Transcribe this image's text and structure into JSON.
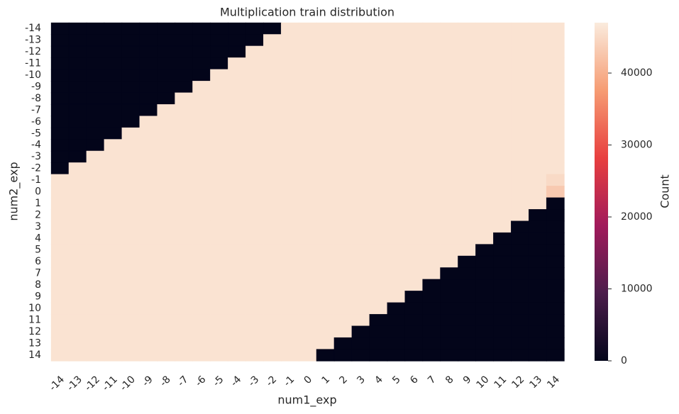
{
  "chart_data": {
    "type": "heatmap",
    "title": "Multiplication train distribution",
    "x_label": "num1_exp",
    "y_label": "num2_exp",
    "colorbar_label": "Count",
    "x_categories": [
      "-14",
      "-13",
      "-12",
      "-11",
      "-10",
      "-9",
      "-8",
      "-7",
      "-6",
      "-5",
      "-4",
      "-3",
      "-2",
      "-1",
      "0",
      "1",
      "2",
      "3",
      "4",
      "5",
      "6",
      "7",
      "8",
      "9",
      "10",
      "11",
      "12",
      "13",
      "14"
    ],
    "y_categories": [
      "-14",
      "-13",
      "-12",
      "-11",
      "-10",
      "-9",
      "-8",
      "-7",
      "-6",
      "-5",
      "-4",
      "-3",
      "-2",
      "-1",
      "0",
      "1",
      "2",
      "3",
      "4",
      "5",
      "6",
      "7",
      "8",
      "9",
      "10",
      "11",
      "12",
      "13",
      "14"
    ],
    "colormap": [
      "#03051a",
      "#4c1d4b",
      "#a11a5b",
      "#e83f3f",
      "#f69c73",
      "#faebdd"
    ],
    "clim": [
      0,
      47000
    ],
    "cticks": [
      0,
      10000,
      20000,
      30000,
      40000
    ],
    "z": [
      [
        0,
        0,
        0,
        0,
        0,
        0,
        0,
        0,
        0,
        0,
        0,
        0,
        0,
        46000,
        46000,
        46000,
        46000,
        46000,
        46000,
        46000,
        46000,
        46000,
        46000,
        46000,
        46000,
        46000,
        46000,
        46000,
        46000
      ],
      [
        0,
        0,
        0,
        0,
        0,
        0,
        0,
        0,
        0,
        0,
        0,
        0,
        46000,
        46000,
        46000,
        46000,
        46000,
        46000,
        46000,
        46000,
        46000,
        46000,
        46000,
        46000,
        46000,
        46000,
        46000,
        46000,
        46000
      ],
      [
        0,
        0,
        0,
        0,
        0,
        0,
        0,
        0,
        0,
        0,
        0,
        46000,
        46000,
        46000,
        46000,
        46000,
        46000,
        46000,
        46000,
        46000,
        46000,
        46000,
        46000,
        46000,
        46000,
        46000,
        46000,
        46000,
        46000
      ],
      [
        0,
        0,
        0,
        0,
        0,
        0,
        0,
        0,
        0,
        0,
        46000,
        46000,
        46000,
        46000,
        46000,
        46000,
        46000,
        46000,
        46000,
        46000,
        46000,
        46000,
        46000,
        46000,
        46000,
        46000,
        46000,
        46000,
        46000
      ],
      [
        0,
        0,
        0,
        0,
        0,
        0,
        0,
        0,
        0,
        46000,
        46000,
        46000,
        46000,
        46000,
        46000,
        46000,
        46000,
        46000,
        46000,
        46000,
        46000,
        46000,
        46000,
        46000,
        46000,
        46000,
        46000,
        46000,
        46000
      ],
      [
        0,
        0,
        0,
        0,
        0,
        0,
        0,
        0,
        46000,
        46000,
        46000,
        46000,
        46000,
        46000,
        46000,
        46000,
        46000,
        46000,
        46000,
        46000,
        46000,
        46000,
        46000,
        46000,
        46000,
        46000,
        46000,
        46000,
        46000
      ],
      [
        0,
        0,
        0,
        0,
        0,
        0,
        0,
        46000,
        46000,
        46000,
        46000,
        46000,
        46000,
        46000,
        46000,
        46000,
        46000,
        46000,
        46000,
        46000,
        46000,
        46000,
        46000,
        46000,
        46000,
        46000,
        46000,
        46000,
        46000
      ],
      [
        0,
        0,
        0,
        0,
        0,
        0,
        46000,
        46000,
        46000,
        46000,
        46000,
        46000,
        46000,
        46000,
        46000,
        46000,
        46000,
        46000,
        46000,
        46000,
        46000,
        46000,
        46000,
        46000,
        46000,
        46000,
        46000,
        46000,
        46000
      ],
      [
        0,
        0,
        0,
        0,
        0,
        46000,
        46000,
        46000,
        46000,
        46000,
        46000,
        46000,
        46000,
        46000,
        46000,
        46000,
        46000,
        46000,
        46000,
        46000,
        46000,
        46000,
        46000,
        46000,
        46000,
        46000,
        46000,
        46000,
        46000
      ],
      [
        0,
        0,
        0,
        0,
        46000,
        46000,
        46000,
        46000,
        46000,
        46000,
        46000,
        46000,
        46000,
        46000,
        46000,
        46000,
        46000,
        46000,
        46000,
        46000,
        46000,
        46000,
        46000,
        46000,
        46000,
        46000,
        46000,
        46000,
        46000
      ],
      [
        0,
        0,
        0,
        46000,
        46000,
        46000,
        46000,
        46000,
        46000,
        46000,
        46000,
        46000,
        46000,
        46000,
        46000,
        46000,
        46000,
        46000,
        46000,
        46000,
        46000,
        46000,
        46000,
        46000,
        46000,
        46000,
        46000,
        46000,
        46000
      ],
      [
        0,
        0,
        46000,
        46000,
        46000,
        46000,
        46000,
        46000,
        46000,
        46000,
        46000,
        46000,
        46000,
        46000,
        46000,
        46000,
        46000,
        46000,
        46000,
        46000,
        46000,
        46000,
        46000,
        46000,
        46000,
        46000,
        46000,
        46000,
        46000
      ],
      [
        0,
        46000,
        46000,
        46000,
        46000,
        46000,
        46000,
        46000,
        46000,
        46000,
        46000,
        46000,
        46000,
        46000,
        46000,
        46000,
        46000,
        46000,
        46000,
        46000,
        46000,
        46000,
        46000,
        46000,
        46000,
        46000,
        46000,
        46000,
        46000
      ],
      [
        46000,
        46000,
        46000,
        46000,
        46000,
        46000,
        46000,
        46000,
        46000,
        46000,
        46000,
        46000,
        46000,
        46000,
        46000,
        46000,
        46000,
        46000,
        46000,
        46000,
        46000,
        46000,
        46000,
        46000,
        46000,
        46000,
        46000,
        46000,
        45000
      ],
      [
        46000,
        46000,
        46000,
        46000,
        46000,
        46000,
        46000,
        46000,
        46000,
        46000,
        46000,
        46000,
        46000,
        46000,
        46000,
        46000,
        46000,
        46000,
        46000,
        46000,
        46000,
        46000,
        46000,
        46000,
        46000,
        46000,
        46000,
        46000,
        43000
      ],
      [
        46000,
        46000,
        46000,
        46000,
        46000,
        46000,
        46000,
        46000,
        46000,
        46000,
        46000,
        46000,
        46000,
        46000,
        46000,
        46000,
        46000,
        46000,
        46000,
        46000,
        46000,
        46000,
        46000,
        46000,
        46000,
        46000,
        46000,
        46000,
        0
      ],
      [
        46000,
        46000,
        46000,
        46000,
        46000,
        46000,
        46000,
        46000,
        46000,
        46000,
        46000,
        46000,
        46000,
        46000,
        46000,
        46000,
        46000,
        46000,
        46000,
        46000,
        46000,
        46000,
        46000,
        46000,
        46000,
        46000,
        46000,
        0,
        0
      ],
      [
        46000,
        46000,
        46000,
        46000,
        46000,
        46000,
        46000,
        46000,
        46000,
        46000,
        46000,
        46000,
        46000,
        46000,
        46000,
        46000,
        46000,
        46000,
        46000,
        46000,
        46000,
        46000,
        46000,
        46000,
        46000,
        46000,
        0,
        0,
        0
      ],
      [
        46000,
        46000,
        46000,
        46000,
        46000,
        46000,
        46000,
        46000,
        46000,
        46000,
        46000,
        46000,
        46000,
        46000,
        46000,
        46000,
        46000,
        46000,
        46000,
        46000,
        46000,
        46000,
        46000,
        46000,
        46000,
        0,
        0,
        0,
        0
      ],
      [
        46000,
        46000,
        46000,
        46000,
        46000,
        46000,
        46000,
        46000,
        46000,
        46000,
        46000,
        46000,
        46000,
        46000,
        46000,
        46000,
        46000,
        46000,
        46000,
        46000,
        46000,
        46000,
        46000,
        46000,
        0,
        0,
        0,
        0,
        0
      ],
      [
        46000,
        46000,
        46000,
        46000,
        46000,
        46000,
        46000,
        46000,
        46000,
        46000,
        46000,
        46000,
        46000,
        46000,
        46000,
        46000,
        46000,
        46000,
        46000,
        46000,
        46000,
        46000,
        46000,
        0,
        0,
        0,
        0,
        0,
        0
      ],
      [
        46000,
        46000,
        46000,
        46000,
        46000,
        46000,
        46000,
        46000,
        46000,
        46000,
        46000,
        46000,
        46000,
        46000,
        46000,
        46000,
        46000,
        46000,
        46000,
        46000,
        46000,
        46000,
        0,
        0,
        0,
        0,
        0,
        0,
        0
      ],
      [
        46000,
        46000,
        46000,
        46000,
        46000,
        46000,
        46000,
        46000,
        46000,
        46000,
        46000,
        46000,
        46000,
        46000,
        46000,
        46000,
        46000,
        46000,
        46000,
        46000,
        46000,
        0,
        0,
        0,
        0,
        0,
        0,
        0,
        0
      ],
      [
        46000,
        46000,
        46000,
        46000,
        46000,
        46000,
        46000,
        46000,
        46000,
        46000,
        46000,
        46000,
        46000,
        46000,
        46000,
        46000,
        46000,
        46000,
        46000,
        46000,
        0,
        0,
        0,
        0,
        0,
        0,
        0,
        0,
        0
      ],
      [
        46000,
        46000,
        46000,
        46000,
        46000,
        46000,
        46000,
        46000,
        46000,
        46000,
        46000,
        46000,
        46000,
        46000,
        46000,
        46000,
        46000,
        46000,
        46000,
        0,
        0,
        0,
        0,
        0,
        0,
        0,
        0,
        0,
        0
      ],
      [
        46000,
        46000,
        46000,
        46000,
        46000,
        46000,
        46000,
        46000,
        46000,
        46000,
        46000,
        46000,
        46000,
        46000,
        46000,
        46000,
        46000,
        46000,
        0,
        0,
        0,
        0,
        0,
        0,
        0,
        0,
        0,
        0,
        0
      ],
      [
        46000,
        46000,
        46000,
        46000,
        46000,
        46000,
        46000,
        46000,
        46000,
        46000,
        46000,
        46000,
        46000,
        46000,
        46000,
        46000,
        46000,
        0,
        0,
        0,
        0,
        0,
        0,
        0,
        0,
        0,
        0,
        0,
        0
      ],
      [
        46000,
        46000,
        46000,
        46000,
        46000,
        46000,
        46000,
        46000,
        46000,
        46000,
        46000,
        46000,
        46000,
        46000,
        46000,
        46000,
        0,
        0,
        0,
        0,
        0,
        0,
        0,
        0,
        0,
        0,
        0,
        0,
        0
      ],
      [
        46000,
        46000,
        46000,
        46000,
        46000,
        46000,
        46000,
        46000,
        46000,
        46000,
        46000,
        46000,
        46000,
        46000,
        46000,
        0,
        0,
        0,
        0,
        0,
        0,
        0,
        0,
        0,
        0,
        0,
        0,
        0,
        0
      ]
    ]
  }
}
